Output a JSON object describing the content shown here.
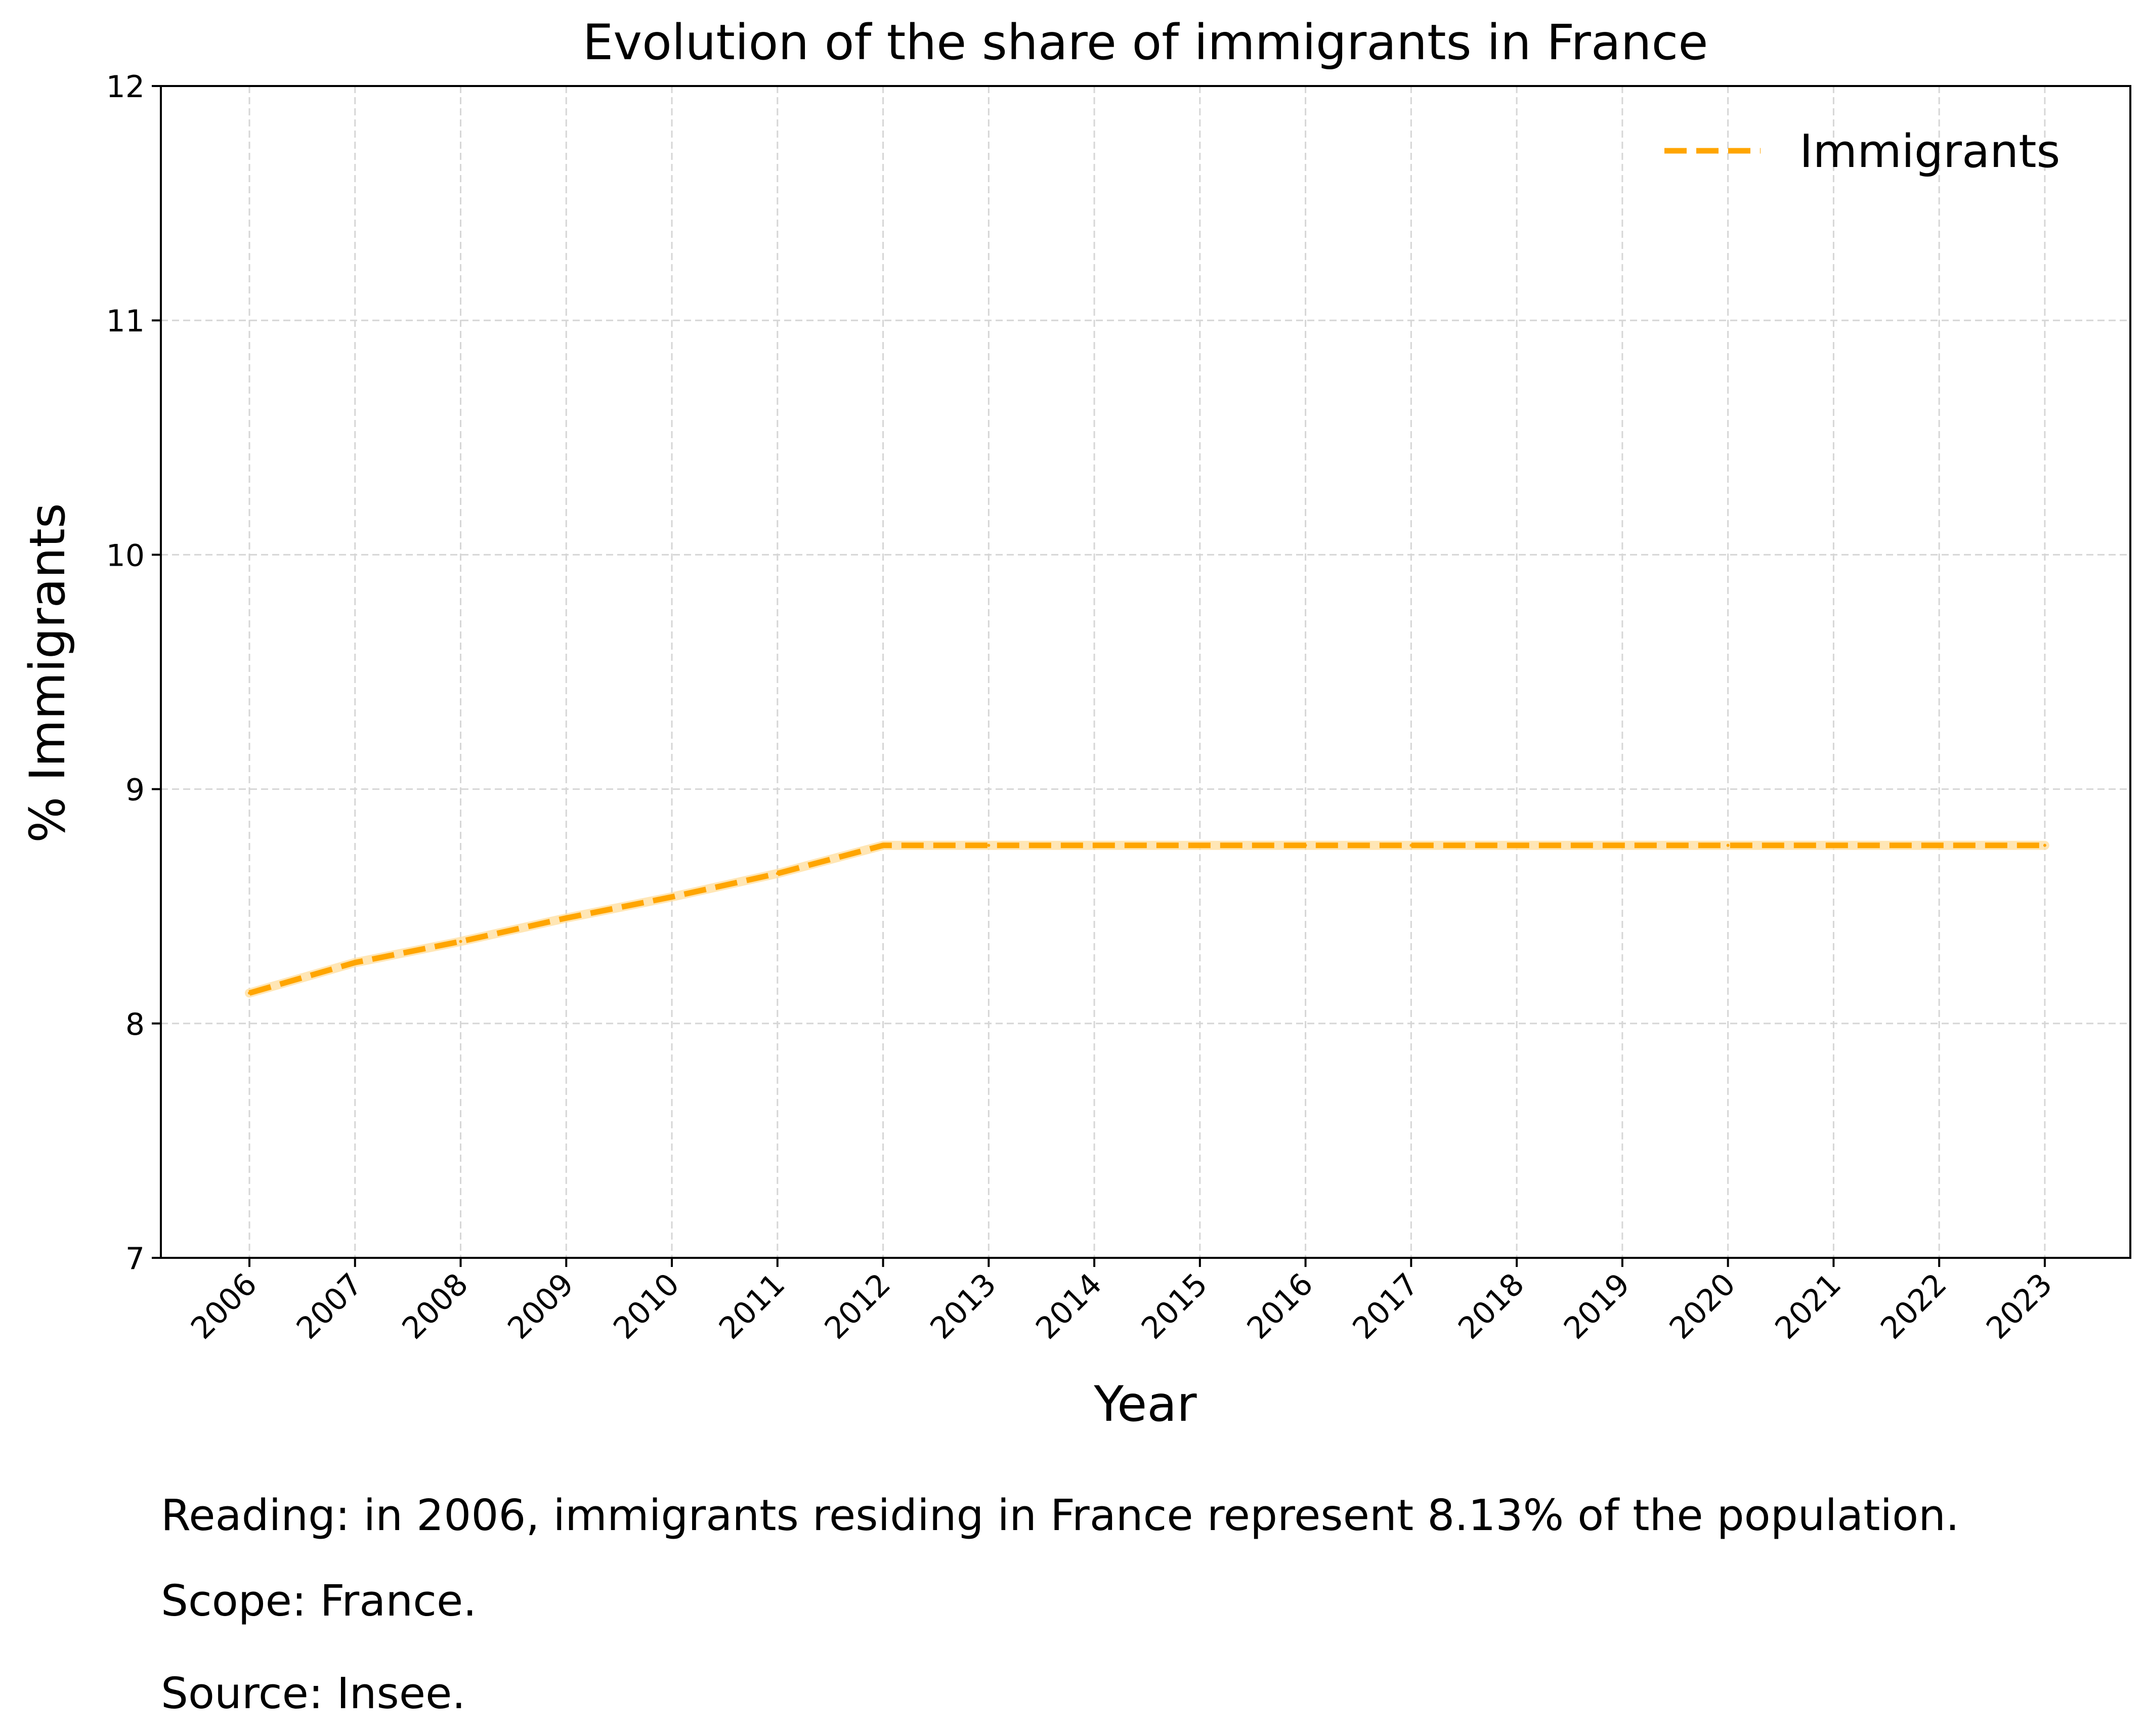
{
  "chart_data": {
    "type": "line",
    "title": "Evolution of the share of immigrants in France",
    "xlabel": "Year",
    "ylabel": "% Immigrants",
    "x": [
      "2006",
      "2007",
      "2008",
      "2009",
      "2010",
      "2011",
      "2012",
      "2013",
      "2014",
      "2015",
      "2016",
      "2017",
      "2018",
      "2019",
      "2020",
      "2021",
      "2022",
      "2023"
    ],
    "series": [
      {
        "name": "Immigrants",
        "values": [
          8.13,
          8.26,
          8.35,
          8.45,
          8.54,
          8.64,
          8.76,
          8.76,
          8.76,
          8.76,
          8.76,
          8.76,
          8.76,
          8.76,
          8.76,
          8.76,
          8.76,
          8.76
        ],
        "color": "#FFA500",
        "line_style": "dashed"
      }
    ],
    "ylim": [
      7,
      12
    ],
    "yticks": [
      "7",
      "8",
      "9",
      "10",
      "11",
      "12"
    ],
    "grid": true,
    "grid_style": "dashed",
    "legend_position": "top-right"
  },
  "notes": {
    "reading": "Reading: in 2006, immigrants residing in France represent 8.13% of the population.",
    "scope": "Scope: France.",
    "source": "Source: Insee."
  }
}
